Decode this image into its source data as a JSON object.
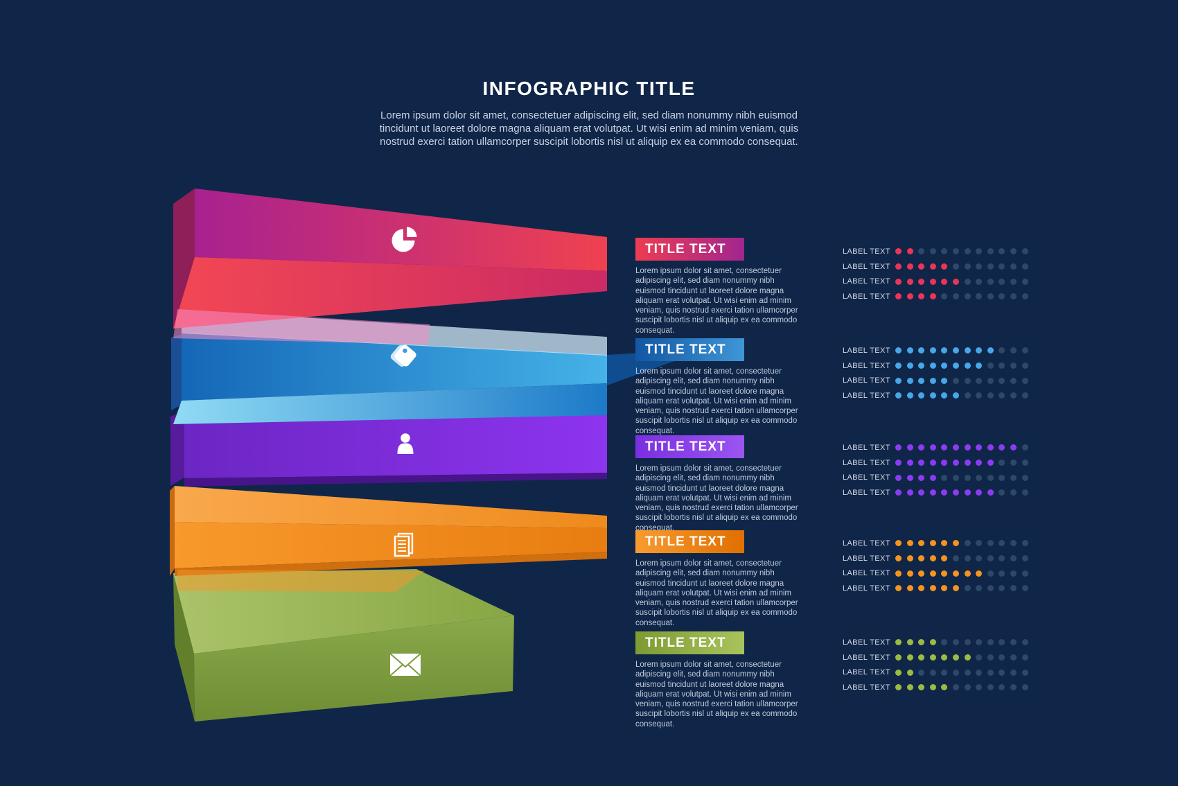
{
  "header": {
    "title": "INFOGRAPHIC TITLE",
    "subtitle": "Lorem ipsum dolor sit amet, consectetuer adipiscing elit, sed diam nonummy nibh euismod tincidunt ut laoreet dolore magna aliquam erat volutpat. Ut wisi enim ad minim veniam, quis nostrud exerci tation ullamcorper suscipit lobortis nisl ut aliquip ex ea commodo consequat."
  },
  "dots": {
    "per_row": 12,
    "empty_color": "#2d4869"
  },
  "groups": [
    {
      "id": "red",
      "icon": "pie-chart-icon",
      "title": "TITLE TEXT",
      "body": "Lorem ipsum dolor sit amet, consectetuer adipiscing elit, sed diam nonummy nibh euismod tincidunt ut laoreet dolore magna aliquam erat volutpat. Ut wisi enim ad minim veniam, quis nostrud exerci tation ullamcorper suscipit lobortis nisl ut aliquip ex ea commodo consequat.",
      "accent": "#ea3558",
      "bar_gradient": [
        "#ed3c52",
        "#a1268f"
      ],
      "rows": [
        {
          "label": "LABEL TEXT",
          "filled": 2,
          "total": 12
        },
        {
          "label": "LABEL TEXT",
          "filled": 5,
          "total": 12
        },
        {
          "label": "LABEL TEXT",
          "filled": 6,
          "total": 12
        },
        {
          "label": "LABEL TEXT",
          "filled": 4,
          "total": 12
        }
      ]
    },
    {
      "id": "blue",
      "icon": "tag-icon",
      "title": "TITLE TEXT",
      "body": "Lorem ipsum dolor sit amet, consectetuer adipiscing elit, sed diam nonummy nibh euismod tincidunt ut laoreet dolore magna aliquam erat volutpat. Ut wisi enim ad minim veniam, quis nostrud exerci tation ullamcorper suscipit lobortis nisl ut aliquip ex ea commodo consequat.",
      "accent": "#47a7e8",
      "bar_gradient": [
        "#1257a2",
        "#3f96d6"
      ],
      "rows": [
        {
          "label": "LABEL TEXT",
          "filled": 9,
          "total": 12
        },
        {
          "label": "LABEL TEXT",
          "filled": 8,
          "total": 12
        },
        {
          "label": "LABEL TEXT",
          "filled": 5,
          "total": 12
        },
        {
          "label": "LABEL TEXT",
          "filled": 6,
          "total": 12
        }
      ]
    },
    {
      "id": "purple",
      "icon": "user-icon",
      "title": "TITLE TEXT",
      "body": "Lorem ipsum dolor sit amet, consectetuer adipiscing elit, sed diam nonummy nibh euismod tincidunt ut laoreet dolore magna aliquam erat volutpat. Ut wisi enim ad minim veniam, quis nostrud exerci tation ullamcorper suscipit lobortis nisl ut aliquip ex ea commodo consequat.",
      "accent": "#8c3bf2",
      "bar_gradient": [
        "#7b2fe0",
        "#9b55f0"
      ],
      "rows": [
        {
          "label": "LABEL TEXT",
          "filled": 11,
          "total": 12
        },
        {
          "label": "LABEL TEXT",
          "filled": 9,
          "total": 12
        },
        {
          "label": "LABEL TEXT",
          "filled": 4,
          "total": 12
        },
        {
          "label": "LABEL TEXT",
          "filled": 9,
          "total": 12
        }
      ]
    },
    {
      "id": "orange",
      "icon": "documents-icon",
      "title": "TITLE TEXT",
      "body": "Lorem ipsum dolor sit amet, consectetuer adipiscing elit, sed diam nonummy nibh euismod tincidunt ut laoreet dolore magna aliquam erat volutpat. Ut wisi enim ad minim veniam, quis nostrud exerci tation ullamcorper suscipit lobortis nisl ut aliquip ex ea commodo consequat.",
      "accent": "#f5941f",
      "bar_gradient": [
        "#f89b30",
        "#e06f00"
      ],
      "rows": [
        {
          "label": "LABEL TEXT",
          "filled": 6,
          "total": 12
        },
        {
          "label": "LABEL TEXT",
          "filled": 5,
          "total": 12
        },
        {
          "label": "LABEL TEXT",
          "filled": 8,
          "total": 12
        },
        {
          "label": "LABEL TEXT",
          "filled": 6,
          "total": 12
        }
      ]
    },
    {
      "id": "green",
      "icon": "envelope-icon",
      "title": "TITLE TEXT",
      "body": "Lorem ipsum dolor sit amet, consectetuer adipiscing elit, sed diam nonummy nibh euismod tincidunt ut laoreet dolore magna aliquam erat volutpat. Ut wisi enim ad minim veniam, quis nostrud exerci tation ullamcorper suscipit lobortis nisl ut aliquip ex ea commodo consequat.",
      "accent": "#9cbb42",
      "bar_gradient": [
        "#7e9a33",
        "#a9c45c"
      ],
      "rows": [
        {
          "label": "LABEL TEXT",
          "filled": 4,
          "total": 12
        },
        {
          "label": "LABEL TEXT",
          "filled": 7,
          "total": 12
        },
        {
          "label": "LABEL TEXT",
          "filled": 2,
          "total": 12
        },
        {
          "label": "LABEL TEXT",
          "filled": 5,
          "total": 12
        }
      ]
    }
  ]
}
